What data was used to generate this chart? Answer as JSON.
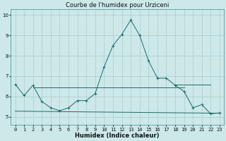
{
  "title": "Courbe de l'humidex pour Urziceni",
  "xlabel": "Humidex (Indice chaleur)",
  "bg_color": "#cce8e8",
  "grid_color": "#aacccc",
  "line_color": "#1a6b6b",
  "xlim": [
    -0.5,
    23.5
  ],
  "ylim": [
    4.6,
    10.3
  ],
  "x": [
    0,
    1,
    2,
    3,
    4,
    5,
    6,
    7,
    8,
    9,
    10,
    11,
    12,
    13,
    14,
    15,
    16,
    17,
    18,
    19,
    20,
    21,
    22,
    23
  ],
  "line1_y": [
    6.6,
    6.05,
    6.55,
    5.75,
    5.45,
    5.3,
    5.45,
    5.8,
    5.8,
    6.15,
    7.45,
    8.5,
    9.05,
    9.75,
    9.0,
    7.75,
    6.9,
    6.9,
    6.55,
    6.25,
    5.45,
    5.6,
    5.15,
    5.2
  ],
  "line2_x": [
    2,
    19
  ],
  "line2_y": [
    6.45,
    6.45
  ],
  "line3_x": [
    18,
    22
  ],
  "line3_y": [
    6.6,
    6.6
  ],
  "line4_x": [
    0,
    23
  ],
  "line4_y": [
    5.28,
    5.18
  ],
  "ytick_values": [
    5,
    6,
    7,
    8,
    9,
    10
  ],
  "title_fontsize": 6,
  "xlabel_fontsize": 6,
  "tick_fontsize": 5
}
